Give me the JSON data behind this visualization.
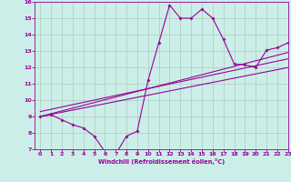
{
  "xlabel": "Windchill (Refroidissement éolien,°C)",
  "x_data": [
    0,
    1,
    2,
    3,
    4,
    5,
    6,
    7,
    8,
    9,
    10,
    11,
    12,
    13,
    14,
    15,
    16,
    17,
    18,
    19,
    20,
    21,
    22,
    23
  ],
  "y_main": [
    9.0,
    9.1,
    8.8,
    8.5,
    8.3,
    7.8,
    6.85,
    6.7,
    7.8,
    8.1,
    11.2,
    13.5,
    15.8,
    15.0,
    15.0,
    15.55,
    15.0,
    13.7,
    12.2,
    12.15,
    12.0,
    13.05,
    13.2,
    13.5
  ],
  "y_line1": [
    9.0,
    9.13,
    9.26,
    9.39,
    9.52,
    9.65,
    9.78,
    9.91,
    10.04,
    10.17,
    10.3,
    10.43,
    10.56,
    10.69,
    10.82,
    10.95,
    11.08,
    11.21,
    11.34,
    11.47,
    11.6,
    11.73,
    11.86,
    11.99
  ],
  "y_line2": [
    9.0,
    9.17,
    9.34,
    9.51,
    9.68,
    9.85,
    10.02,
    10.19,
    10.36,
    10.53,
    10.7,
    10.87,
    11.04,
    11.21,
    11.38,
    11.55,
    11.72,
    11.89,
    12.06,
    12.23,
    12.4,
    12.57,
    12.74,
    12.91
  ],
  "y_line3": [
    9.3,
    9.44,
    9.58,
    9.72,
    9.86,
    10.0,
    10.14,
    10.28,
    10.42,
    10.56,
    10.7,
    10.84,
    10.98,
    11.12,
    11.26,
    11.4,
    11.54,
    11.68,
    11.82,
    11.96,
    12.1,
    12.24,
    12.38,
    12.52
  ],
  "bg_color": "#cceee8",
  "line_color": "#990099",
  "grid_color": "#aaccbb",
  "ylim": [
    7,
    16
  ],
  "xlim": [
    -0.5,
    23
  ]
}
